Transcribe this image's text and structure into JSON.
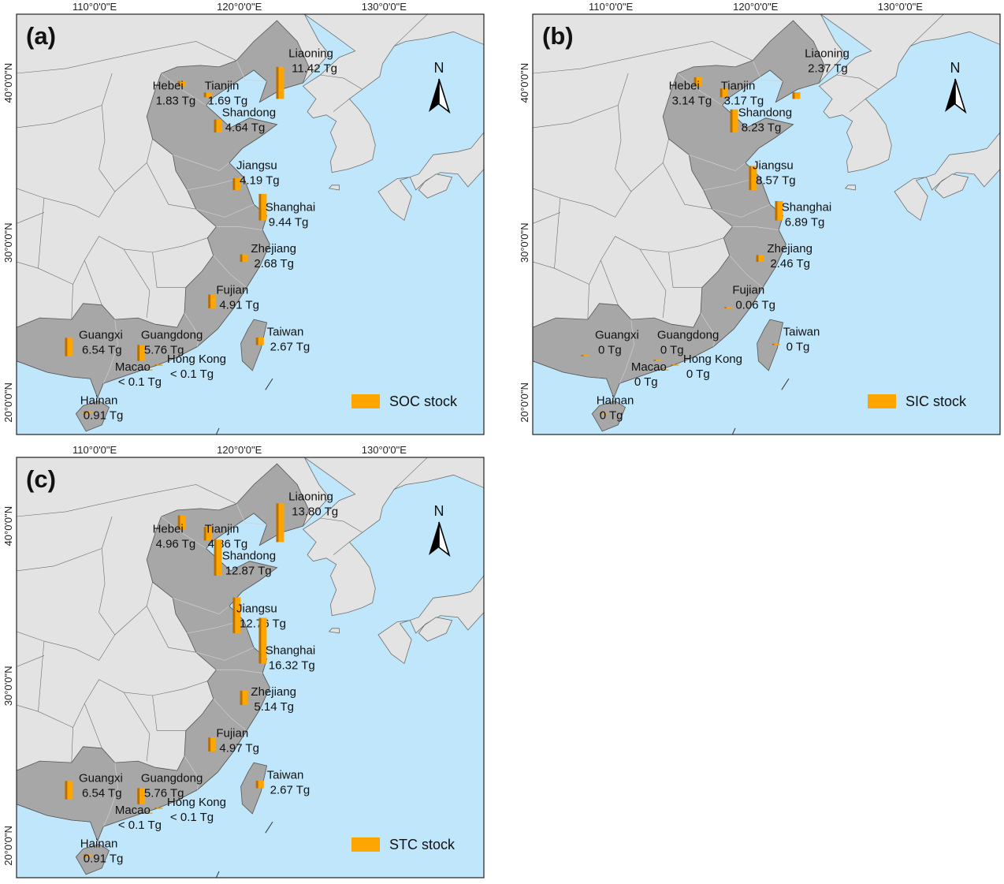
{
  "colors": {
    "sea": "#bfe6fa",
    "land": "#e3e3e3",
    "study_area": "#a7a7a7",
    "bar": "#ffa500",
    "bar_shade": "#b86f00",
    "border": "#6e6e6e"
  },
  "axis_labels": {
    "lon": [
      "110°0'0\"E",
      "120°0'0\"E",
      "130°0'0\"E"
    ],
    "lat": [
      "40°0'0\"N",
      "30°0'0\"N",
      "20°0'0\"N"
    ]
  },
  "north_arrow": {
    "label": "N",
    "icon": "north-arrow-icon"
  },
  "panels": [
    {
      "id": "a",
      "label": "(a)",
      "legend": "SOC stock",
      "show_north": true,
      "provinces": [
        {
          "name": "Liaoning",
          "value": "11.42 Tg",
          "amount": 11.42
        },
        {
          "name": "Hebei",
          "value": "1.83 Tg",
          "amount": 1.83
        },
        {
          "name": "Tianjin",
          "value": "1.69 Tg",
          "amount": 1.69
        },
        {
          "name": "Shandong",
          "value": "4.64 Tg",
          "amount": 4.64
        },
        {
          "name": "Jiangsu",
          "value": "4.19 Tg",
          "amount": 4.19
        },
        {
          "name": "Shanghai",
          "value": "9.44 Tg",
          "amount": 9.44
        },
        {
          "name": "Zhejiang",
          "value": "2.68 Tg",
          "amount": 2.68
        },
        {
          "name": "Fujian",
          "value": "4.91 Tg",
          "amount": 4.91
        },
        {
          "name": "Guangxi",
          "value": "6.54 Tg",
          "amount": 6.54
        },
        {
          "name": "Guangdong",
          "value": "5.76 Tg",
          "amount": 5.76
        },
        {
          "name": "Taiwan",
          "value": "2.67 Tg",
          "amount": 2.67
        },
        {
          "name": "Hong Kong",
          "value": "< 0.1 Tg",
          "amount": 0.05
        },
        {
          "name": "Macao",
          "value": "< 0.1 Tg",
          "amount": 0.05
        },
        {
          "name": "Hainan",
          "value": "0.91 Tg",
          "amount": 0.91
        }
      ]
    },
    {
      "id": "b",
      "label": "(b)",
      "legend": "SIC stock",
      "show_north": true,
      "provinces": [
        {
          "name": "Liaoning",
          "value": "2.37 Tg",
          "amount": 2.37
        },
        {
          "name": "Hebei",
          "value": "3.14 Tg",
          "amount": 3.14
        },
        {
          "name": "Tianjin",
          "value": "3.17 Tg",
          "amount": 3.17
        },
        {
          "name": "Shandong",
          "value": "8.23 Tg",
          "amount": 8.23
        },
        {
          "name": "Jiangsu",
          "value": "8.57 Tg",
          "amount": 8.57
        },
        {
          "name": "Shanghai",
          "value": "6.89 Tg",
          "amount": 6.89
        },
        {
          "name": "Zhejiang",
          "value": "2.46 Tg",
          "amount": 2.46
        },
        {
          "name": "Fujian",
          "value": "0.06 Tg",
          "amount": 0.06
        },
        {
          "name": "Guangxi",
          "value": "0 Tg",
          "amount": 0
        },
        {
          "name": "Guangdong",
          "value": "0 Tg",
          "amount": 0
        },
        {
          "name": "Taiwan",
          "value": "0 Tg",
          "amount": 0
        },
        {
          "name": "Hong Kong",
          "value": "0 Tg",
          "amount": 0
        },
        {
          "name": "Macao",
          "value": "0 Tg",
          "amount": 0
        },
        {
          "name": "Hainan",
          "value": "0 Tg",
          "amount": 0
        }
      ]
    },
    {
      "id": "c",
      "label": "(c)",
      "legend": "STC stock",
      "show_north": true,
      "provinces": [
        {
          "name": "Liaoning",
          "value": "13.80 Tg",
          "amount": 13.8
        },
        {
          "name": "Hebei",
          "value": "4.96 Tg",
          "amount": 4.96
        },
        {
          "name": "Tianjin",
          "value": "4.86 Tg",
          "amount": 4.86
        },
        {
          "name": "Shandong",
          "value": "12.87 Tg",
          "amount": 12.87
        },
        {
          "name": "Jiangsu",
          "value": "12.76 Tg",
          "amount": 12.76
        },
        {
          "name": "Shanghai",
          "value": "16.32 Tg",
          "amount": 16.32
        },
        {
          "name": "Zhejiang",
          "value": "5.14 Tg",
          "amount": 5.14
        },
        {
          "name": "Fujian",
          "value": "4.97 Tg",
          "amount": 4.97
        },
        {
          "name": "Guangxi",
          "value": "6.54 Tg",
          "amount": 6.54
        },
        {
          "name": "Guangdong",
          "value": "5.76 Tg",
          "amount": 5.76
        },
        {
          "name": "Taiwan",
          "value": "2.67 Tg",
          "amount": 2.67
        },
        {
          "name": "Hong Kong",
          "value": "< 0.1 Tg",
          "amount": 0.05
        },
        {
          "name": "Macao",
          "value": "< 0.1 Tg",
          "amount": 0.05
        },
        {
          "name": "Hainan",
          "value": "0.91 Tg",
          "amount": 0.91
        }
      ]
    }
  ]
}
